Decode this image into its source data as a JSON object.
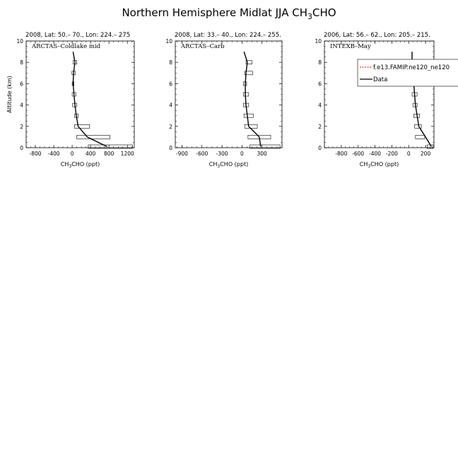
{
  "figure": {
    "title_main": "Northern Hemisphere Midlat JJA CH",
    "title_sub": "3",
    "title_end": "CHO"
  },
  "chart_data": [
    {
      "type": "line",
      "title": "2008, Lat:  50.– 70., Lon: 224.– 275",
      "inset_label": "ARCTAS–Coldlake mid",
      "xlabel_pre": "CH",
      "xlabel_sub": "3",
      "xlabel_post": "CHO (ppt)",
      "ylabel": "Altitude (km)",
      "xlim": [
        -1000,
        1350
      ],
      "ylim": [
        0,
        10
      ],
      "xticks": [
        -800,
        -400,
        0,
        400,
        800,
        1200
      ],
      "xtick_labels": [
        "-800",
        "-400",
        "0",
        "400",
        "800",
        "1200"
      ],
      "yticks": [
        0,
        2,
        4,
        6,
        8,
        10
      ],
      "ytick_labels": [
        "0",
        "2",
        "4",
        "6",
        "8",
        "10"
      ],
      "series": [
        {
          "name": "Data",
          "x": [
            760,
            330,
            130,
            90,
            60,
            40,
            20,
            30,
            60,
            20
          ],
          "y": [
            0.1,
            1.0,
            2.0,
            3.0,
            4.0,
            5.0,
            6.0,
            7.0,
            8.0,
            9.0
          ]
        }
      ],
      "boxes": [
        {
          "y": 0.1,
          "xmin": 350,
          "xmax": 1310
        },
        {
          "y": 1.0,
          "xmin": 100,
          "xmax": 820
        },
        {
          "y": 2.0,
          "xmin": 50,
          "xmax": 380
        },
        {
          "y": 3.0,
          "xmin": 50,
          "xmax": 130
        },
        {
          "y": 4.0,
          "xmin": 10,
          "xmax": 100
        },
        {
          "y": 5.0,
          "xmin": 0,
          "xmax": 80
        },
        {
          "y": 6.0,
          "xmin": 0,
          "xmax": 40
        },
        {
          "y": 7.0,
          "xmin": -5,
          "xmax": 70
        },
        {
          "y": 8.0,
          "xmin": 20,
          "xmax": 100
        }
      ]
    },
    {
      "type": "line",
      "title": "2008, Lat:  33.– 40., Lon: 224.– 255.",
      "inset_label": "ARCTAS–Carb",
      "xlabel_pre": "CH",
      "xlabel_sub": "3",
      "xlabel_post": "CHO (ppt)",
      "ylabel": "",
      "xlim": [
        -1000,
        600
      ],
      "ylim": [
        0,
        10
      ],
      "xticks": [
        -900,
        -600,
        -300,
        0,
        300
      ],
      "xtick_labels": [
        "-900",
        "-600",
        "-300",
        "0",
        "300"
      ],
      "yticks": [
        0,
        2,
        4,
        6,
        8,
        10
      ],
      "ytick_labels": [
        "0",
        "2",
        "4",
        "6",
        "8",
        "10"
      ],
      "series": [
        {
          "name": "Data",
          "x": [
            280,
            260,
            100,
            80,
            60,
            50,
            50,
            60,
            80,
            30
          ],
          "y": [
            0.1,
            1.0,
            2.0,
            3.0,
            4.0,
            5.0,
            6.0,
            7.0,
            8.0,
            9.0
          ]
        }
      ],
      "boxes": [
        {
          "y": 0.1,
          "xmin": 120,
          "xmax": 570
        },
        {
          "y": 1.0,
          "xmin": 90,
          "xmax": 430
        },
        {
          "y": 2.0,
          "xmin": 40,
          "xmax": 230
        },
        {
          "y": 3.0,
          "xmin": 30,
          "xmax": 170
        },
        {
          "y": 4.0,
          "xmin": 20,
          "xmax": 100
        },
        {
          "y": 5.0,
          "xmin": 20,
          "xmax": 100
        },
        {
          "y": 6.0,
          "xmin": 20,
          "xmax": 70
        },
        {
          "y": 7.0,
          "xmin": 40,
          "xmax": 160
        },
        {
          "y": 8.0,
          "xmin": 60,
          "xmax": 150
        }
      ]
    },
    {
      "type": "line",
      "title": "2006, Lat:  56.– 62., Lon: 205.– 215.",
      "inset_label": "INTEXB–May",
      "xlabel_pre": "CH",
      "xlabel_sub": "3",
      "xlabel_post": "CHO (ppt)",
      "ylabel": "",
      "xlim": [
        -1000,
        300
      ],
      "ylim": [
        0,
        10
      ],
      "xticks": [
        -800,
        -600,
        -400,
        -200,
        0,
        200
      ],
      "xtick_labels": [
        "-800",
        "-600",
        "-400",
        "-200",
        "0",
        "200"
      ],
      "yticks": [
        0,
        2,
        4,
        6,
        8,
        10
      ],
      "ytick_labels": [
        "0",
        "2",
        "4",
        "6",
        "8",
        "10"
      ],
      "series": [
        {
          "name": "Data",
          "x": [
            270,
            200,
            120,
            100,
            80,
            70,
            60,
            30,
            40,
            40
          ],
          "y": [
            0.1,
            1.0,
            2.0,
            3.0,
            4.0,
            5.0,
            6.0,
            7.0,
            8.0,
            9.0
          ]
        }
      ],
      "boxes": [
        {
          "y": 0.1,
          "xmin": 220,
          "xmax": 290
        },
        {
          "y": 1.0,
          "xmin": 80,
          "xmax": 190
        },
        {
          "y": 2.0,
          "xmin": 70,
          "xmax": 150
        },
        {
          "y": 3.0,
          "xmin": 60,
          "xmax": 130
        },
        {
          "y": 4.0,
          "xmin": 50,
          "xmax": 100
        },
        {
          "y": 5.0,
          "xmin": 40,
          "xmax": 100
        },
        {
          "y": 6.0,
          "xmin": 30,
          "xmax": 90
        },
        {
          "y": 7.0,
          "xmin": 20,
          "xmax": 60
        },
        {
          "y": 8.0,
          "xmin": 60,
          "xmax": 110
        }
      ]
    }
  ],
  "legend": {
    "items": [
      {
        "label": "f.e13.FAMIP.ne120_ne120",
        "color": "#ff0000",
        "dashed": true
      },
      {
        "label": "Data",
        "color": "#000000",
        "dashed": false
      }
    ]
  }
}
